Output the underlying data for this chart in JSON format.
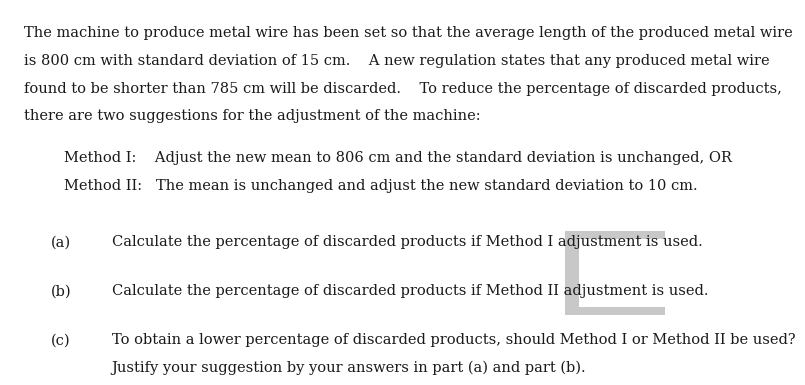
{
  "background_color": "#ffffff",
  "text_color": "#1a1a1a",
  "font_size": 10.5,
  "font_family": "DejaVu Serif",
  "line1": "The machine to produce metal wire has been set so that the average length of the produced metal wire",
  "line2": "is 800 cm with standard deviation of 15 cm.    A new regulation states that any produced metal wire",
  "line3": "found to be shorter than 785 cm will be discarded.    To reduce the percentage of discarded products,",
  "line4": "there are two suggestions for the adjustment of the machine:",
  "method_i": "Method I:    Adjust the new mean to 806 cm and the standard deviation is unchanged, OR",
  "method_ii": "Method II:   The mean is unchanged and adjust the new standard deviation to 10 cm.",
  "part_a_label": "(a)",
  "part_a_text": "Calculate the percentage of discarded products if Method I adjustment is used.",
  "part_b_label": "(b)",
  "part_b_text": "Calculate the percentage of discarded products if Method II adjustment is used.",
  "part_c_label": "(c)",
  "part_c_text1": "To obtain a lower percentage of discarded products, should Method I or Method II be used?",
  "part_c_text2": "Justify your suggestion by your answers in part (a) and part (b).",
  "box_color": "#c8c8c8"
}
